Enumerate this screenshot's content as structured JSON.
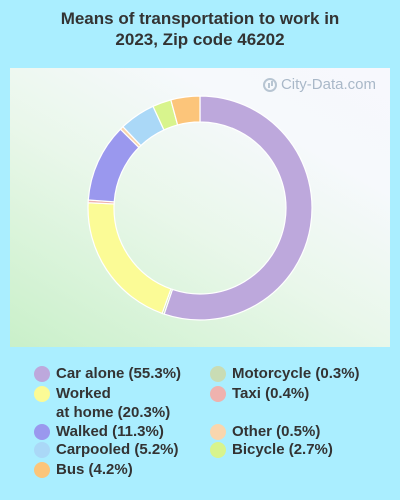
{
  "title_lines": [
    "Means of transportation to work in",
    "2023, Zip code 46202"
  ],
  "watermark": "City-Data.com",
  "chart_data": {
    "type": "pie",
    "title": "Means of transportation to work in 2023, Zip code 46202",
    "donut": true,
    "slices": [
      {
        "label": "Car alone (55.3%)",
        "lines": [
          "Car alone (55.3%)"
        ],
        "value": 55.3,
        "color": "#bda8dc"
      },
      {
        "label": "Motorcycle (0.3%)",
        "lines": [
          "Motorcycle (0.3%)"
        ],
        "value": 0.3,
        "color": "#c9dcb4"
      },
      {
        "label": "Worked at home (20.3%)",
        "lines": [
          "Worked",
          "at home (20.3%)"
        ],
        "value": 20.3,
        "color": "#fbfb96"
      },
      {
        "label": "Taxi (0.4%)",
        "lines": [
          "Taxi (0.4%)"
        ],
        "value": 0.4,
        "color": "#efb2ae"
      },
      {
        "label": "Walked (11.3%)",
        "lines": [
          "Walked (11.3%)"
        ],
        "value": 11.3,
        "color": "#9a98ee"
      },
      {
        "label": "Other (0.5%)",
        "lines": [
          "Other (0.5%)"
        ],
        "value": 0.5,
        "color": "#f9d6ae"
      },
      {
        "label": "Carpooled (5.2%)",
        "lines": [
          "Carpooled (5.2%)"
        ],
        "value": 5.2,
        "color": "#aad8f7"
      },
      {
        "label": "Bicycle (2.7%)",
        "lines": [
          "Bicycle (2.7%)"
        ],
        "value": 2.7,
        "color": "#d8f48d"
      },
      {
        "label": "Bus (4.2%)",
        "lines": [
          "Bus (4.2%)"
        ],
        "value": 4.2,
        "color": "#fcc57a"
      }
    ],
    "legend": "bottom"
  }
}
